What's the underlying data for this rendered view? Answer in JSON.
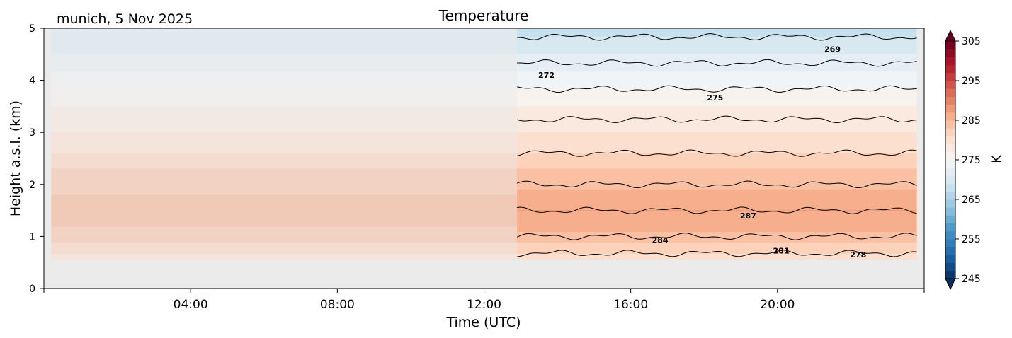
{
  "chart_data": {
    "type": "heatmap",
    "title": "Temperature",
    "subtitle": "munich, 5 Nov 2025",
    "xlabel": "Time (UTC)",
    "ylabel": "Height a.s.l. (km)",
    "x_ticks": [
      "04:00",
      "08:00",
      "12:00",
      "16:00",
      "20:00"
    ],
    "x_tick_values_hours": [
      4,
      8,
      12,
      16,
      20
    ],
    "xlim_hours": [
      0,
      24
    ],
    "y_ticks": [
      "0",
      "1",
      "2",
      "3",
      "4",
      "5"
    ],
    "ylim_km": [
      0,
      5
    ],
    "colorbar": {
      "label": "K",
      "ticks": [
        "245",
        "255",
        "265",
        "275",
        "285",
        "295",
        "305"
      ],
      "range": [
        245,
        305
      ],
      "colormap": "RdBu_r",
      "extend": "both"
    },
    "data_coverage": {
      "faded_segment_hours": [
        0.2,
        12.9
      ],
      "full_segment_hours": [
        12.9,
        23.8
      ],
      "height_km": [
        0.55,
        5
      ]
    },
    "temperature_profile": {
      "height_km": [
        0.55,
        0.8,
        1.0,
        1.2,
        1.5,
        1.8,
        2.0,
        2.3,
        2.6,
        3.0,
        3.5,
        4.0,
        4.5,
        5.0
      ],
      "faded_K": [
        280,
        282,
        284,
        285,
        285,
        285,
        284,
        283,
        281,
        279,
        277,
        274,
        271,
        269
      ],
      "full_K": [
        280,
        282,
        284,
        286,
        287,
        286,
        284,
        283,
        281,
        279,
        277,
        274,
        271,
        268
      ]
    },
    "contour_labels": [
      {
        "text": "269",
        "time_h": 21.5,
        "height_km": 4.6
      },
      {
        "text": "272",
        "time_h": 13.7,
        "height_km": 4.1
      },
      {
        "text": "275",
        "time_h": 18.3,
        "height_km": 3.67
      },
      {
        "text": "287",
        "time_h": 19.2,
        "height_km": 1.4
      },
      {
        "text": "284",
        "time_h": 16.8,
        "height_km": 0.93
      },
      {
        "text": "281",
        "time_h": 20.1,
        "height_km": 0.73
      },
      {
        "text": "278",
        "time_h": 22.2,
        "height_km": 0.65
      }
    ],
    "contour_levels_K": [
      266,
      269,
      272,
      275,
      278,
      281,
      284,
      287
    ],
    "grid": false
  }
}
